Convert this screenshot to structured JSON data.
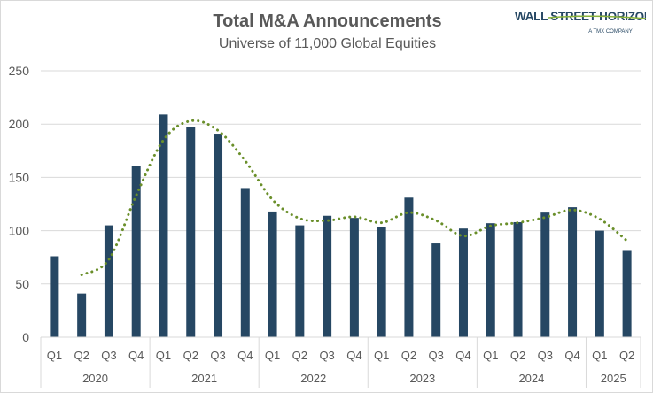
{
  "logo": {
    "text": "WALL STREET HORIZON",
    "subtext": "A TMX COMPANY"
  },
  "colors": {
    "bar": "#264763",
    "trend": "#6a8f2a",
    "grid": "#d9d9d9",
    "text": "#595959"
  },
  "chart_data": {
    "type": "bar",
    "title": "Total M&A Announcements",
    "subtitle": "Universe of 11,000 Global Equities",
    "ylim": [
      0,
      250
    ],
    "yticks": [
      0,
      50,
      100,
      150,
      200,
      250
    ],
    "grid": true,
    "years": [
      "2020",
      "2021",
      "2022",
      "2023",
      "2024",
      "2025"
    ],
    "categories": [
      "Q1",
      "Q2",
      "Q3",
      "Q4",
      "Q1",
      "Q2",
      "Q3",
      "Q4",
      "Q1",
      "Q2",
      "Q3",
      "Q4",
      "Q1",
      "Q2",
      "Q3",
      "Q4",
      "Q1",
      "Q2",
      "Q3",
      "Q4",
      "Q1",
      "Q2"
    ],
    "year_of_category": [
      "2020",
      "2020",
      "2020",
      "2020",
      "2021",
      "2021",
      "2021",
      "2021",
      "2022",
      "2022",
      "2022",
      "2022",
      "2023",
      "2023",
      "2023",
      "2023",
      "2024",
      "2024",
      "2024",
      "2024",
      "2025",
      "2025"
    ],
    "values": [
      76,
      41,
      105,
      161,
      209,
      197,
      191,
      140,
      118,
      105,
      114,
      112,
      103,
      131,
      88,
      102,
      107,
      108,
      117,
      122,
      100,
      81
    ],
    "trendline": {
      "type": "moving-average",
      "period": 2,
      "style": "dotted"
    }
  }
}
